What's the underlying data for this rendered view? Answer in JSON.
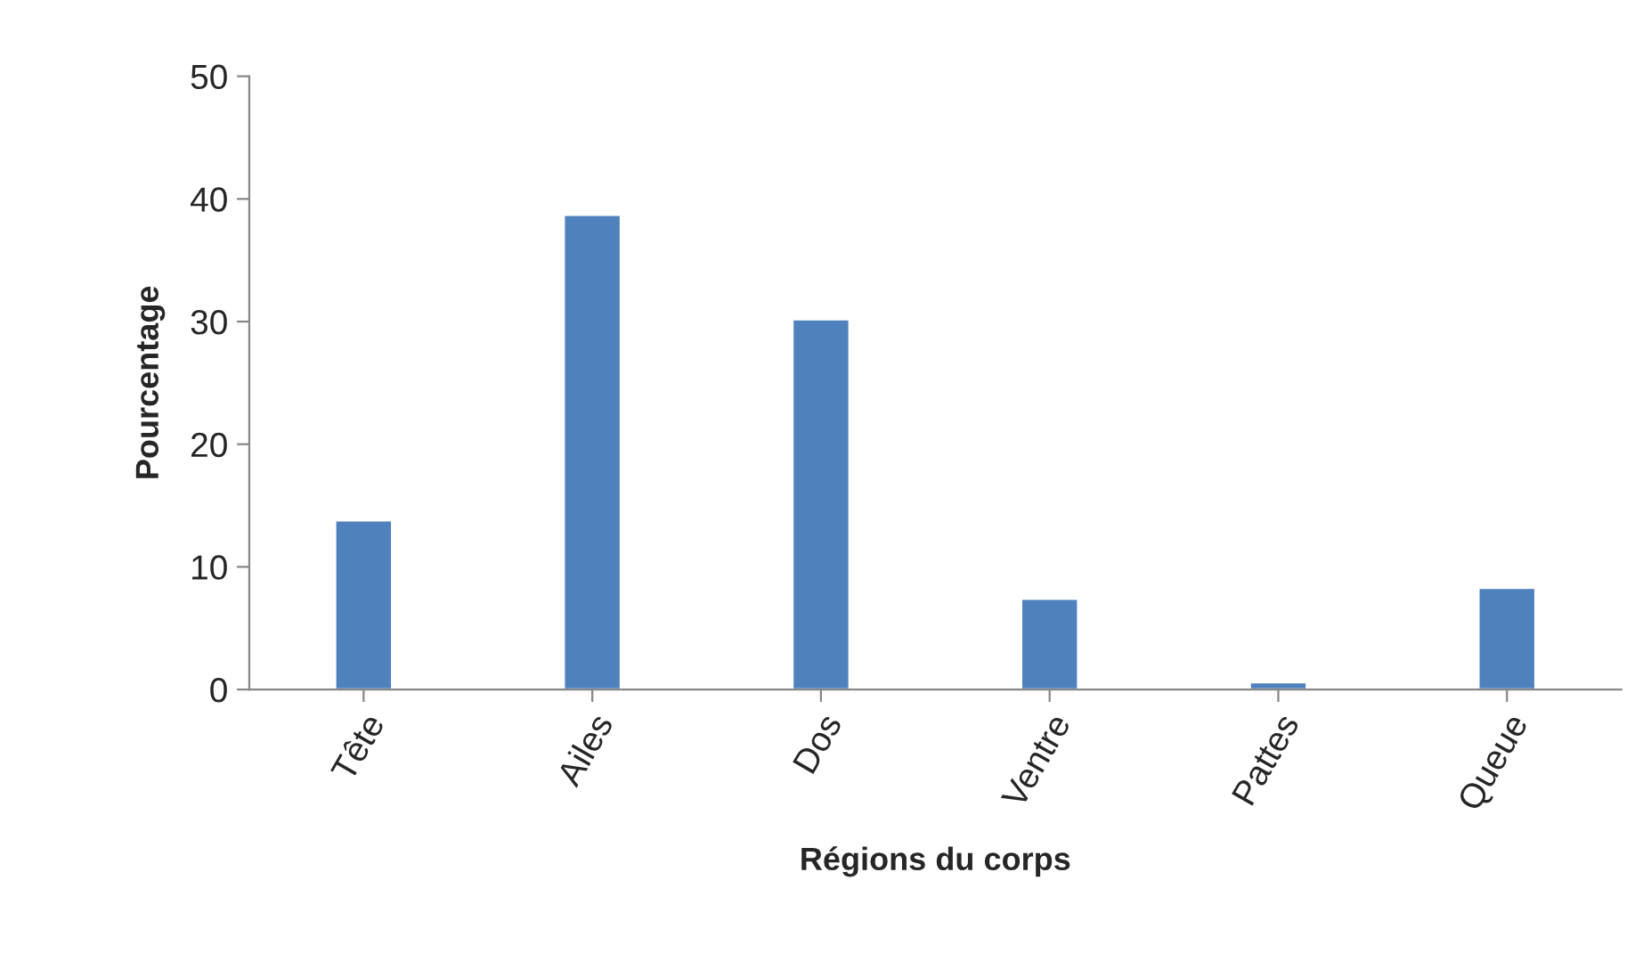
{
  "chart_data": {
    "type": "bar",
    "xlabel": "Régions du corps",
    "ylabel": "Pourcentage",
    "categories": [
      "Tête",
      "Ailes",
      "Dos",
      "Ventre",
      "Pattes",
      "Queue"
    ],
    "values": [
      13.8,
      38.7,
      30.2,
      7.4,
      0.6,
      8.3
    ],
    "color": "#4f81bd",
    "ylim": [
      0,
      50
    ],
    "yticks": [
      0,
      10,
      20,
      30,
      40,
      50
    ],
    "grid": false,
    "legend": false
  }
}
